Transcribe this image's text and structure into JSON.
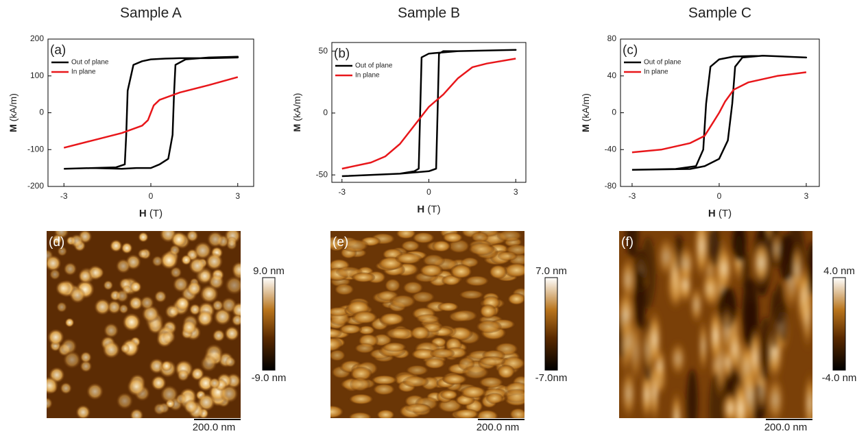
{
  "chart_data": [
    {
      "type": "line",
      "title": "Sample A",
      "panel_label": "(a)",
      "xlabel_symbol": "H",
      "xlabel_unit": "(T)",
      "ylabel_symbol": "M",
      "ylabel_unit": "(kA/m)",
      "xlim": [
        -3.55,
        3.55
      ],
      "xticks": [
        -3,
        0,
        3
      ],
      "ylim": [
        -200,
        200
      ],
      "yticks": [
        -200,
        -100,
        0,
        100,
        200
      ],
      "legend": "upper left",
      "series": [
        {
          "name": "Out of plane",
          "color": "#000000",
          "x": [
            -3,
            -2,
            -1,
            -0.5,
            0,
            0.3,
            0.6,
            0.75,
            0.8,
            0.85,
            1.2,
            2,
            3,
            3,
            2,
            1,
            0.5,
            0,
            -0.3,
            -0.6,
            -0.8,
            -0.85,
            -0.9,
            -1.2,
            -2,
            -3
          ],
          "values": [
            -152,
            -150,
            -152,
            -150,
            -150,
            -140,
            -125,
            -60,
            50,
            130,
            145,
            150,
            152,
            150,
            148,
            148,
            147,
            145,
            140,
            130,
            60,
            -60,
            -140,
            -148,
            -150,
            -152
          ]
        },
        {
          "name": "In plane",
          "color": "#e8161a",
          "x": [
            -3,
            -2,
            -1,
            -0.3,
            -0.1,
            0,
            0.1,
            0.3,
            1,
            2,
            3
          ],
          "values": [
            -95,
            -75,
            -55,
            -35,
            -20,
            0,
            20,
            35,
            55,
            75,
            97
          ]
        }
      ]
    },
    {
      "type": "line",
      "title": "Sample B",
      "panel_label": "(b)",
      "xlabel_symbol": "H",
      "xlabel_unit": "(T)",
      "ylabel_symbol": "M",
      "ylabel_unit": "(kA/m)",
      "xlim": [
        -3.35,
        3.35
      ],
      "xticks": [
        -3,
        0,
        3
      ],
      "ylim": [
        -56,
        57
      ],
      "yticks": [
        -50,
        0,
        50
      ],
      "legend": "upper left",
      "series": [
        {
          "name": "Out of plane",
          "color": "#000000",
          "x": [
            -3,
            -1,
            0,
            0.25,
            0.3,
            0.35,
            0.5,
            1,
            3,
            3,
            1,
            0,
            -0.25,
            -0.3,
            -0.35,
            -0.5,
            -1,
            -3
          ],
          "values": [
            -51,
            -49,
            -47,
            -45,
            0,
            48,
            50,
            50,
            51,
            51,
            50,
            48,
            45,
            0,
            -45,
            -47,
            -49,
            -51
          ]
        },
        {
          "name": "In plane",
          "color": "#e8161a",
          "x": [
            -3,
            -2,
            -1.5,
            -1,
            -0.5,
            0,
            0.5,
            1,
            1.5,
            2,
            3
          ],
          "values": [
            -45,
            -40,
            -35,
            -25,
            -10,
            5,
            15,
            28,
            37,
            40,
            44
          ]
        }
      ]
    },
    {
      "type": "line",
      "title": "Sample C",
      "panel_label": "(c)",
      "xlabel_symbol": "H",
      "xlabel_unit": "(T)",
      "ylabel_symbol": "M",
      "ylabel_unit": "(kA/m)",
      "xlim": [
        -3.4,
        3.45
      ],
      "xticks": [
        -3,
        0,
        3
      ],
      "ylim": [
        -80,
        80
      ],
      "yticks": [
        -80,
        -40,
        0,
        40,
        80
      ],
      "legend": "upper left",
      "series": [
        {
          "name": "Out of plane",
          "color": "#000000",
          "x": [
            -3,
            -1,
            -0.5,
            0,
            0.3,
            0.45,
            0.55,
            0.8,
            1.5,
            3,
            3,
            1.5,
            0.5,
            0,
            -0.3,
            -0.45,
            -0.55,
            -0.8,
            -1.5,
            -3
          ],
          "values": [
            -62,
            -61,
            -58,
            -50,
            -30,
            10,
            50,
            60,
            62,
            60,
            60,
            62,
            61,
            58,
            50,
            10,
            -40,
            -58,
            -61,
            -62
          ]
        },
        {
          "name": "In plane",
          "color": "#e8161a",
          "x": [
            -3,
            -2,
            -1,
            -0.5,
            -0.2,
            0,
            0.2,
            0.5,
            1,
            2,
            3
          ],
          "values": [
            -43,
            -40,
            -33,
            -25,
            -10,
            0,
            12,
            25,
            33,
            40,
            44
          ]
        }
      ]
    }
  ],
  "afm_panels": [
    {
      "panel_label": "(d)",
      "colorbar_max": "9.0 nm",
      "colorbar_min": "-9.0 nm",
      "scale_bar": "200.0 nm"
    },
    {
      "panel_label": "(e)",
      "colorbar_max": "7.0 nm",
      "colorbar_min": "-7.0nm",
      "scale_bar": "200.0 nm"
    },
    {
      "panel_label": "(f)",
      "colorbar_max": "4.0 nm",
      "colorbar_min": "-4.0 nm",
      "scale_bar": "200.0 nm"
    }
  ]
}
